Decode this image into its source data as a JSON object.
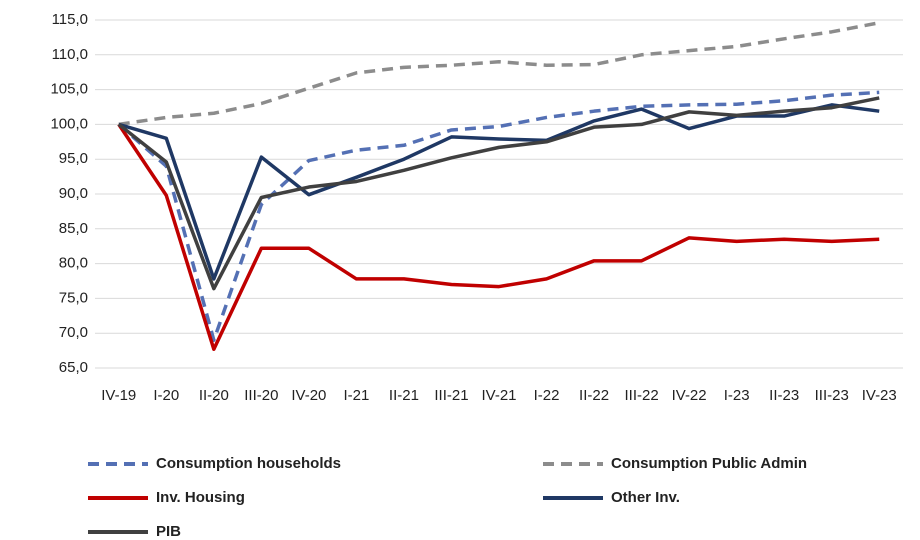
{
  "chart_data": {
    "type": "line",
    "categories": [
      "IV-19",
      "I-20",
      "II-20",
      "III-20",
      "IV-20",
      "I-21",
      "II-21",
      "III-21",
      "IV-21",
      "I-22",
      "II-22",
      "III-22",
      "IV-22",
      "I-23",
      "II-23",
      "III-23",
      "IV-23"
    ],
    "series": [
      {
        "name": "Consumption households",
        "color": "#5470b4",
        "dashed": true,
        "values": [
          100,
          94,
          69,
          88.5,
          94.8,
          96.3,
          97,
          99.2,
          99.7,
          101,
          101.9,
          102.6,
          102.8,
          102.9,
          103.4,
          104.2,
          104.6
        ]
      },
      {
        "name": "Consumption Public Admin",
        "color": "#8c8c8c",
        "dashed": true,
        "values": [
          100,
          101,
          101.6,
          103,
          105.2,
          107.4,
          108.2,
          108.5,
          109,
          108.5,
          108.6,
          110,
          110.6,
          111.2,
          112.3,
          113.3,
          114.6
        ]
      },
      {
        "name": "Inv. Housing",
        "color": "#c00000",
        "dashed": false,
        "values": [
          100,
          89.8,
          67.7,
          82.2,
          82.2,
          77.8,
          77.8,
          77,
          76.7,
          77.8,
          80.4,
          80.4,
          83.7,
          83.2,
          83.5,
          83.2,
          83.5
        ]
      },
      {
        "name": "Other Inv.",
        "color": "#1f3864",
        "dashed": false,
        "values": [
          100,
          98,
          77.8,
          95.3,
          89.9,
          92.4,
          95,
          98.2,
          97.9,
          97.7,
          100.5,
          102.2,
          99.4,
          101.2,
          101.2,
          102.8,
          101.9
        ]
      },
      {
        "name": "PIB",
        "color": "#404040",
        "dashed": false,
        "values": [
          100,
          94.6,
          76.4,
          89.5,
          91,
          91.8,
          93.4,
          95.2,
          96.7,
          97.5,
          99.6,
          100,
          101.8,
          101.3,
          101.9,
          102.4,
          103.8
        ]
      }
    ],
    "ylim": [
      65,
      115
    ],
    "yticks": [
      {
        "value": 65,
        "label": "65,0"
      },
      {
        "value": 70,
        "label": "70,0"
      },
      {
        "value": 75,
        "label": "75,0"
      },
      {
        "value": 80,
        "label": "80,0"
      },
      {
        "value": 85,
        "label": "85,0"
      },
      {
        "value": 90,
        "label": "90,0"
      },
      {
        "value": 95,
        "label": "95,0"
      },
      {
        "value": 100,
        "label": "100,0"
      },
      {
        "value": 105,
        "label": "105,0"
      },
      {
        "value": 110,
        "label": "110,0"
      },
      {
        "value": 115,
        "label": "115,0"
      }
    ],
    "grid": true,
    "legend": "bottom"
  }
}
